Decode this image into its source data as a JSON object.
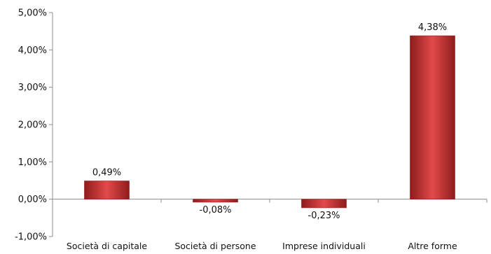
{
  "chart_data": {
    "type": "bar",
    "categories": [
      "Società di capitale",
      "Società di persone",
      "Imprese individuali",
      "Altre forme"
    ],
    "values": [
      0.49,
      -0.08,
      -0.23,
      4.38
    ],
    "data_labels": [
      "0,49%",
      "-0,08%",
      "-0,23%",
      "4,38%"
    ],
    "ylim": [
      -1,
      5
    ],
    "yticks": [
      -1,
      0,
      1,
      2,
      3,
      4,
      5
    ],
    "ytick_labels": [
      "-1,00%",
      "0,00%",
      "1,00%",
      "2,00%",
      "3,00%",
      "4,00%",
      "5,00%"
    ],
    "title": "",
    "xlabel": "",
    "ylabel": "",
    "grid": false,
    "legend": "none",
    "colors": {
      "bar_light": "#e24a4a",
      "bar_mid": "#c62f2f",
      "bar_dark": "#8e1c1c",
      "axis": "#8c8c8c"
    }
  }
}
